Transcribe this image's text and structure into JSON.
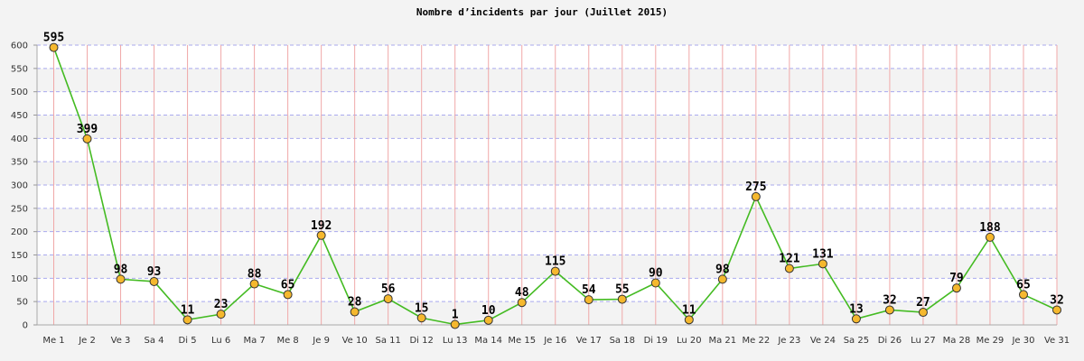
{
  "chart_data": {
    "type": "line",
    "title": "Nombre d’incidents par jour (Juillet 2015)",
    "xlabel": "",
    "ylabel": "",
    "ylim": [
      0,
      600
    ],
    "yticks": [
      0,
      50,
      100,
      150,
      200,
      250,
      300,
      350,
      400,
      450,
      500,
      550,
      600
    ],
    "grid": true,
    "categories": [
      "Me 1",
      "Je 2",
      "Ve 3",
      "Sa 4",
      "Di 5",
      "Lu 6",
      "Ma 7",
      "Me 8",
      "Je 9",
      "Ve 10",
      "Sa 11",
      "Di 12",
      "Lu 13",
      "Ma 14",
      "Me 15",
      "Je 16",
      "Ve 17",
      "Sa 18",
      "Di 19",
      "Lu 20",
      "Ma 21",
      "Me 22",
      "Je 23",
      "Ve 24",
      "Sa 25",
      "Di 26",
      "Lu 27",
      "Ma 28",
      "Me 29",
      "Je 30",
      "Ve 31"
    ],
    "series": [
      {
        "values": [
          595,
          399,
          98,
          93,
          11,
          23,
          88,
          65,
          192,
          28,
          56,
          15,
          1,
          10,
          48,
          115,
          54,
          55,
          90,
          11,
          98,
          275,
          121,
          131,
          13,
          32,
          27,
          79,
          188,
          65,
          32
        ],
        "color": "#44bb22",
        "marker_color": "#f5b82e"
      }
    ]
  }
}
